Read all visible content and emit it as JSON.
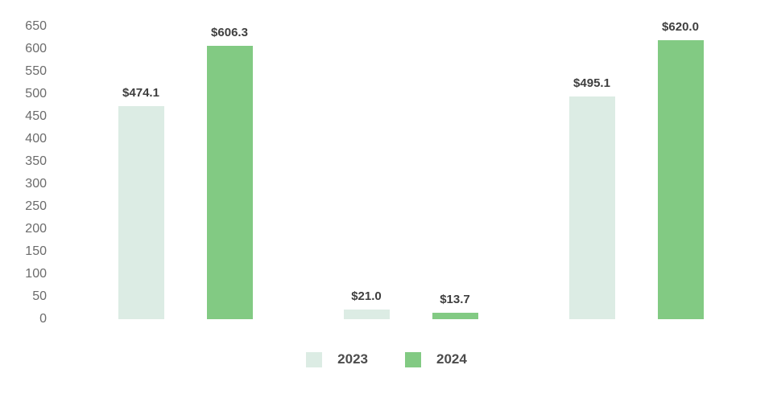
{
  "chart": {
    "background": "#ffffff",
    "axis": {
      "tick_color": "#6b6b6b",
      "tick_labels": [
        "0",
        "50",
        "100",
        "150",
        "200",
        "250",
        "300",
        "350",
        "400",
        "450",
        "500",
        "550",
        "600",
        "650"
      ]
    },
    "value_label_color": "#3f3f3f",
    "legend_text_color": "#4c4c4c"
  },
  "chart_data": {
    "type": "bar",
    "categories": [
      "",
      "",
      ""
    ],
    "series": [
      {
        "name": "2023",
        "color": "#dcece4",
        "values": [
          474.1,
          21.0,
          495.1
        ],
        "labels": [
          "$474.1",
          "$21.0",
          "$495.1"
        ]
      },
      {
        "name": "2024",
        "color": "#82ca83",
        "values": [
          606.3,
          13.7,
          620.0
        ],
        "labels": [
          "$606.3",
          "$13.7",
          "$620.0"
        ]
      }
    ],
    "ylim": [
      0,
      650
    ],
    "ytick_step": 50,
    "grid": false,
    "axis_lines": false,
    "legend_position": "bottom",
    "title": "",
    "xlabel": "",
    "ylabel": ""
  }
}
